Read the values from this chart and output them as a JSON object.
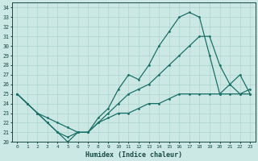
{
  "xlabel": "Humidex (Indice chaleur)",
  "bg_color": "#cce8e4",
  "line_color": "#1a7068",
  "grid_color": "#aad4cc",
  "xlim": [
    -0.5,
    23.5
  ],
  "ylim": [
    20,
    34.5
  ],
  "yticks": [
    20,
    21,
    22,
    23,
    24,
    25,
    26,
    27,
    28,
    29,
    30,
    31,
    32,
    33,
    34
  ],
  "xticks": [
    0,
    1,
    2,
    3,
    4,
    5,
    6,
    7,
    8,
    9,
    10,
    11,
    12,
    13,
    14,
    15,
    16,
    17,
    18,
    19,
    20,
    21,
    22,
    23
  ],
  "line1_x": [
    0,
    1,
    2,
    3,
    4,
    5,
    6,
    7,
    8,
    9,
    10,
    11,
    12,
    13,
    14,
    15,
    16,
    17,
    18,
    19,
    20,
    21,
    22,
    23
  ],
  "line1_y": [
    25,
    24,
    23,
    22,
    21,
    20.5,
    21,
    21,
    22.5,
    23.5,
    25.5,
    27,
    26.5,
    28,
    30,
    31.5,
    33,
    33.5,
    33,
    29,
    25,
    26,
    27,
    25
  ],
  "line2_x": [
    0,
    1,
    2,
    3,
    4,
    5,
    6,
    7,
    8,
    9,
    10,
    11,
    12,
    13,
    14,
    15,
    16,
    17,
    18,
    19,
    20,
    21,
    22,
    23
  ],
  "line2_y": [
    25,
    24,
    23,
    22,
    21,
    20,
    21,
    21,
    22,
    23,
    24,
    25,
    25.5,
    26,
    27,
    28,
    29,
    30,
    31,
    31,
    28,
    26,
    25,
    25
  ],
  "line3_x": [
    0,
    1,
    2,
    3,
    4,
    5,
    6,
    7,
    8,
    9,
    10,
    11,
    12,
    13,
    14,
    15,
    16,
    17,
    18,
    19,
    20,
    21,
    22,
    23
  ],
  "line3_y": [
    25,
    24,
    23,
    22.5,
    22,
    21.5,
    21,
    21,
    22,
    22.5,
    23,
    23,
    23.5,
    24,
    24,
    24.5,
    25,
    25,
    25,
    25,
    25,
    25,
    25,
    25.5
  ]
}
